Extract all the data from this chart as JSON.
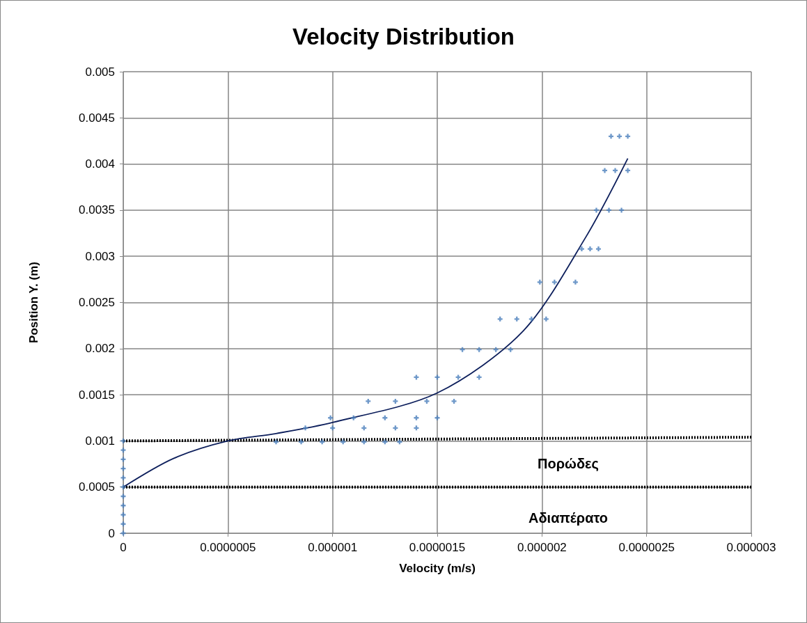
{
  "chart_data": {
    "type": "scatter",
    "title": "Velocity Distribution",
    "xlabel": "Velocity (m/s)",
    "ylabel": "Position Y. (m)",
    "xlim": [
      0,
      3e-06
    ],
    "ylim": [
      0,
      0.005
    ],
    "xticks": [
      0,
      {
        "value": 5e-07,
        "label": "0.0000005"
      },
      {
        "value": 1e-06,
        "label": "0.000001"
      },
      {
        "value": 1.5e-06,
        "label": "0.0000015"
      },
      {
        "value": 2e-06,
        "label": "0.000002"
      },
      {
        "value": 2.5e-06,
        "label": "0.0000025"
      },
      {
        "value": 3e-06,
        "label": "0.000003"
      }
    ],
    "yticks": [
      0,
      0.0005,
      0.001,
      0.0015,
      0.002,
      0.0025,
      0.003,
      0.0035,
      0.004,
      0.0045,
      0.005
    ],
    "grid": true,
    "series": [
      {
        "color": "#4a7ebb",
        "marker": "cross",
        "x": [
          0,
          0,
          0,
          0,
          0,
          0,
          0,
          0,
          0,
          0,
          0,
          7.3e-07,
          8.5e-07,
          9.5e-07,
          1.05e-06,
          1.15e-06,
          1.25e-06,
          1.32e-06,
          8.7e-07,
          1e-06,
          1.15e-06,
          1.3e-06,
          1.4e-06,
          9.9e-07,
          1.1e-06,
          1.25e-06,
          1.4e-06,
          1.5e-06,
          1.17e-06,
          1.3e-06,
          1.45e-06,
          1.58e-06,
          1.4e-06,
          1.5e-06,
          1.6e-06,
          1.7e-06,
          1.62e-06,
          1.7e-06,
          1.78e-06,
          1.85e-06,
          1.8e-06,
          1.88e-06,
          1.95e-06,
          2.02e-06,
          1.99e-06,
          2.06e-06,
          2.16e-06,
          2.19e-06,
          2.23e-06,
          2.27e-06,
          2.26e-06,
          2.32e-06,
          2.38e-06,
          2.3e-06,
          2.35e-06,
          2.41e-06,
          2.33e-06,
          2.37e-06,
          2.41e-06
        ],
        "values": [
          0,
          0.0001,
          0.0002,
          0.0003,
          0.0004,
          0.0005,
          0.0006,
          0.0007,
          0.0008,
          0.0009,
          0.001,
          0.00099,
          0.00099,
          0.00099,
          0.00099,
          0.00099,
          0.00099,
          0.00099,
          0.00114,
          0.00114,
          0.00114,
          0.00114,
          0.00114,
          0.00125,
          0.00125,
          0.00125,
          0.00125,
          0.00125,
          0.00143,
          0.00143,
          0.00143,
          0.00143,
          0.00169,
          0.00169,
          0.00169,
          0.00169,
          0.00199,
          0.00199,
          0.00199,
          0.00199,
          0.00232,
          0.00232,
          0.00232,
          0.00232,
          0.00272,
          0.00272,
          0.00272,
          0.00308,
          0.00308,
          0.00308,
          0.0035,
          0.0035,
          0.0035,
          0.00393,
          0.00393,
          0.00393,
          0.0043,
          0.0043,
          0.0043
        ]
      },
      {
        "type": "line",
        "color": "#0d1f5c",
        "marker": "none",
        "line_style": "solid",
        "x": [
          0,
          2.4e-07,
          5e-07,
          7.3e-07,
          1e-06,
          1.5e-06,
          1.91e-06,
          2.21e-06,
          2.41e-06
        ],
        "values": [
          0.0005,
          0.00081,
          0.001,
          0.00108,
          0.0012,
          0.00152,
          0.00219,
          0.00321,
          0.00406
        ]
      },
      {
        "type": "line",
        "color": "#000000",
        "marker": "none",
        "line_style": "dotted",
        "x": [
          0,
          3e-06
        ],
        "values": [
          0.001,
          0.00104
        ]
      },
      {
        "type": "line",
        "color": "#000000",
        "marker": "none",
        "line_style": "dotted",
        "x": [
          0,
          3e-06
        ],
        "values": [
          0.0005,
          0.0005
        ]
      }
    ],
    "annotations": [
      "Πορώδες",
      "Αδιαπέρατο"
    ]
  }
}
